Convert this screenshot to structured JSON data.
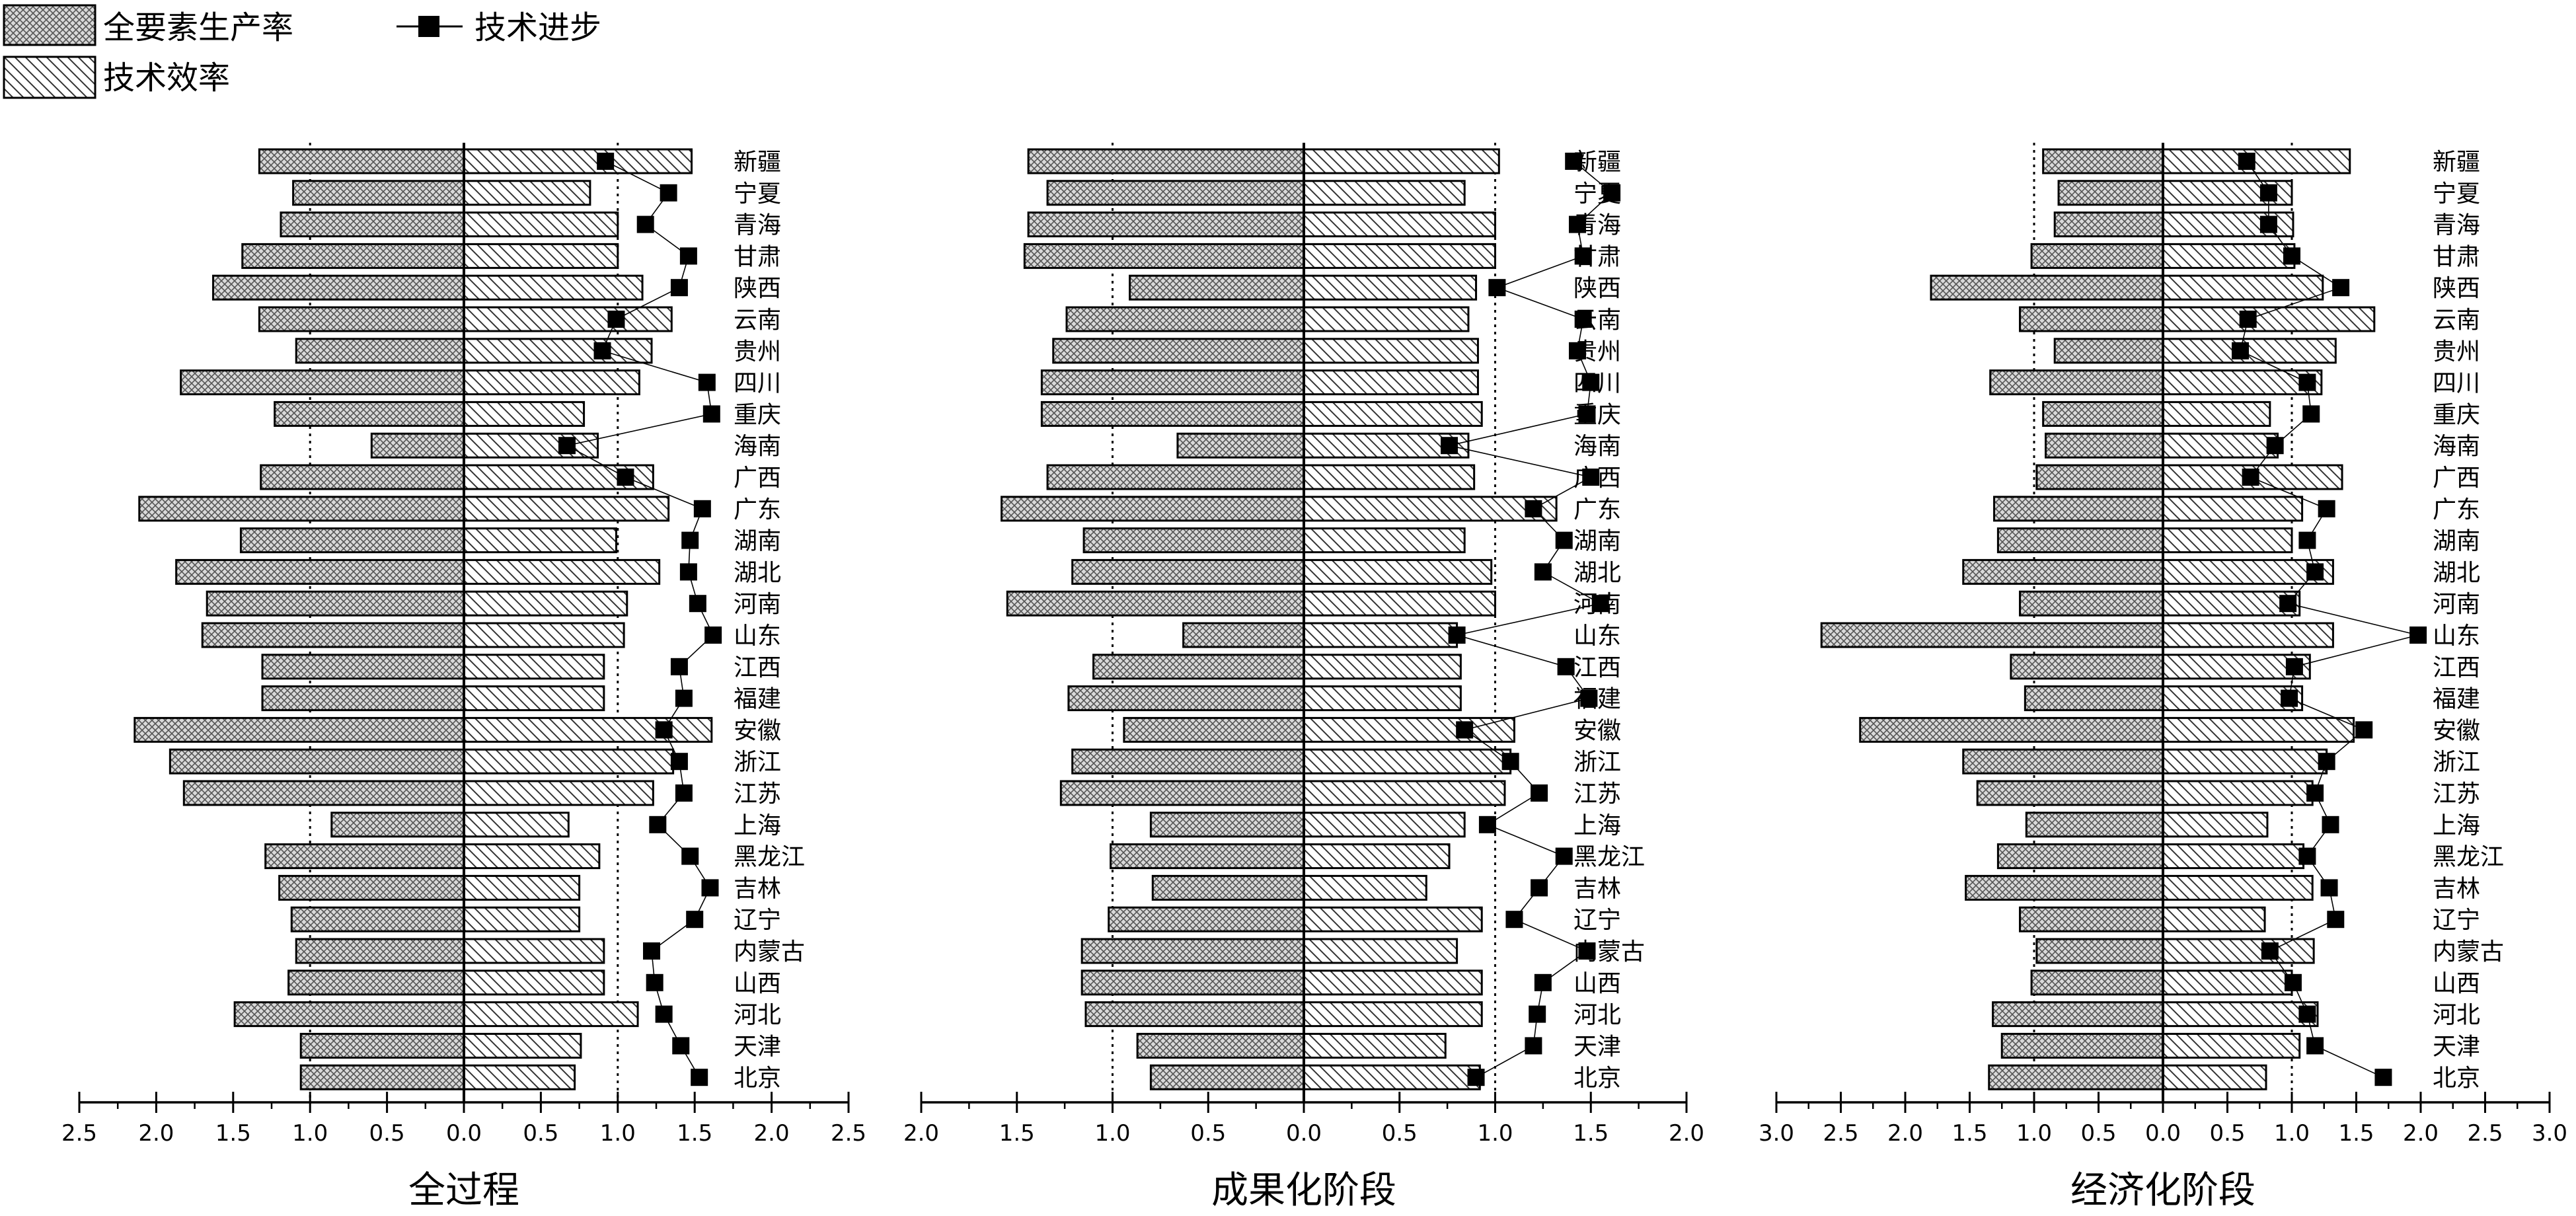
{
  "legend": {
    "tfp": "全要素生产率",
    "tech_progress": "技术进步",
    "tech_efficiency": "技术效率"
  },
  "colors": {
    "bar_stroke": "#000000",
    "bar_fill": "#ffffff",
    "marker": "#000000"
  },
  "chart_data": [
    {
      "type": "bar",
      "title": "全过程",
      "orientation": "horizontal, back-to-back: 全要素生产率 extends left, 技术效率 extends right, 技术进步 markers on right",
      "categories": [
        "新疆",
        "宁夏",
        "青海",
        "甘肃",
        "陕西",
        "云南",
        "贵州",
        "四川",
        "重庆",
        "海南",
        "广西",
        "广东",
        "湖南",
        "湖北",
        "河南",
        "山东",
        "江西",
        "福建",
        "安徽",
        "浙江",
        "江苏",
        "上海",
        "黑龙江",
        "吉林",
        "辽宁",
        "内蒙古",
        "山西",
        "河北",
        "天津",
        "北京"
      ],
      "tick_labels": [
        "2.5",
        "2.0",
        "1.5",
        "1.0",
        "0.5",
        "0.0",
        "0.5",
        "1.0",
        "1.5",
        "2.0",
        "2.5"
      ],
      "xlim": [
        -2.5,
        2.5
      ],
      "reference_lines": [
        -1.0,
        1.0
      ],
      "series": [
        {
          "name": "全要素生产率",
          "values": [
            1.33,
            1.11,
            1.19,
            1.44,
            1.63,
            1.33,
            1.09,
            1.84,
            1.23,
            0.6,
            1.32,
            2.11,
            1.45,
            1.87,
            1.67,
            1.7,
            1.31,
            1.31,
            2.14,
            1.91,
            1.82,
            0.86,
            1.29,
            1.2,
            1.12,
            1.09,
            1.14,
            1.49,
            1.06,
            1.06
          ]
        },
        {
          "name": "技术效率",
          "values": [
            1.48,
            0.82,
            1.0,
            1.0,
            1.16,
            1.35,
            1.22,
            1.14,
            0.78,
            0.87,
            1.23,
            1.33,
            0.99,
            1.27,
            1.06,
            1.04,
            0.91,
            0.91,
            1.61,
            1.36,
            1.23,
            0.68,
            0.88,
            0.75,
            0.75,
            0.91,
            0.91,
            1.13,
            0.76,
            0.72
          ]
        },
        {
          "name": "技术进步",
          "values": [
            0.92,
            1.33,
            1.18,
            1.46,
            1.4,
            0.99,
            0.9,
            1.58,
            1.61,
            0.67,
            1.05,
            1.55,
            1.47,
            1.46,
            1.52,
            1.62,
            1.4,
            1.43,
            1.3,
            1.4,
            1.43,
            1.26,
            1.47,
            1.6,
            1.5,
            1.22,
            1.24,
            1.3,
            1.41,
            1.53
          ]
        }
      ]
    },
    {
      "type": "bar",
      "title": "成果化阶段",
      "orientation": "horizontal, back-to-back",
      "categories": [
        "新疆",
        "宁夏",
        "青海",
        "甘肃",
        "陕西",
        "云南",
        "贵州",
        "四川",
        "重庆",
        "海南",
        "广西",
        "广东",
        "湖南",
        "湖北",
        "河南",
        "山东",
        "江西",
        "福建",
        "安徽",
        "浙江",
        "江苏",
        "上海",
        "黑龙江",
        "吉林",
        "辽宁",
        "内蒙古",
        "山西",
        "河北",
        "天津",
        "北京"
      ],
      "tick_labels": [
        "2.0",
        "1.5",
        "1.0",
        "0.5",
        "0.0",
        "0.5",
        "1.0",
        "1.5",
        "2.0"
      ],
      "xlim": [
        -2.0,
        2.0
      ],
      "reference_lines": [
        -1.0,
        1.0
      ],
      "series": [
        {
          "name": "全要素生产率",
          "values": [
            1.44,
            1.34,
            1.44,
            1.46,
            0.91,
            1.24,
            1.31,
            1.37,
            1.37,
            0.66,
            1.34,
            1.58,
            1.15,
            1.21,
            1.55,
            0.63,
            1.1,
            1.23,
            0.94,
            1.21,
            1.27,
            0.8,
            1.01,
            0.79,
            1.02,
            1.16,
            1.16,
            1.14,
            0.87,
            0.8
          ]
        },
        {
          "name": "技术效率",
          "values": [
            1.02,
            0.84,
            1.0,
            1.0,
            0.9,
            0.86,
            0.91,
            0.91,
            0.93,
            0.86,
            0.89,
            1.32,
            0.84,
            0.98,
            1.0,
            0.8,
            0.82,
            0.82,
            1.1,
            1.08,
            1.05,
            0.84,
            0.76,
            0.64,
            0.93,
            0.8,
            0.93,
            0.93,
            0.74,
            0.92
          ]
        },
        {
          "name": "技术进步",
          "values": [
            1.41,
            1.61,
            1.43,
            1.46,
            1.01,
            1.46,
            1.43,
            1.5,
            1.48,
            0.76,
            1.5,
            1.2,
            1.36,
            1.25,
            1.55,
            0.8,
            1.37,
            1.49,
            0.84,
            1.08,
            1.23,
            0.96,
            1.36,
            1.23,
            1.1,
            1.48,
            1.25,
            1.22,
            1.2,
            0.9
          ]
        }
      ]
    },
    {
      "type": "bar",
      "title": "经济化阶段",
      "orientation": "horizontal, back-to-back",
      "categories": [
        "新疆",
        "宁夏",
        "青海",
        "甘肃",
        "陕西",
        "云南",
        "贵州",
        "四川",
        "重庆",
        "海南",
        "广西",
        "广东",
        "湖南",
        "湖北",
        "河南",
        "山东",
        "江西",
        "福建",
        "安徽",
        "浙江",
        "江苏",
        "上海",
        "黑龙江",
        "吉林",
        "辽宁",
        "内蒙古",
        "山西",
        "河北",
        "天津",
        "北京"
      ],
      "tick_labels": [
        "3.0",
        "2.5",
        "2.0",
        "1.5",
        "1.0",
        "0.5",
        "0.0",
        "0.5",
        "1.0",
        "1.5",
        "2.0",
        "2.5",
        "3.0"
      ],
      "xlim": [
        -3.0,
        3.0
      ],
      "reference_lines": [
        -1.0,
        1.0
      ],
      "series": [
        {
          "name": "全要素生产率",
          "values": [
            0.93,
            0.81,
            0.84,
            1.02,
            1.8,
            1.11,
            0.84,
            1.34,
            0.93,
            0.91,
            0.98,
            1.31,
            1.28,
            1.55,
            1.11,
            2.65,
            1.18,
            1.07,
            2.35,
            1.55,
            1.44,
            1.06,
            1.28,
            1.53,
            1.11,
            0.98,
            1.02,
            1.32,
            1.25,
            1.35
          ]
        },
        {
          "name": "技术效率",
          "values": [
            1.45,
            1.0,
            1.01,
            1.02,
            1.24,
            1.64,
            1.34,
            1.23,
            0.83,
            0.89,
            1.39,
            1.08,
            1.0,
            1.32,
            1.06,
            1.32,
            1.14,
            1.08,
            1.48,
            1.27,
            1.16,
            0.81,
            1.09,
            1.16,
            0.79,
            1.17,
            1.0,
            1.2,
            1.06,
            0.8
          ]
        },
        {
          "name": "技术进步",
          "values": [
            0.65,
            0.82,
            0.82,
            1.0,
            1.38,
            0.66,
            0.6,
            1.12,
            1.15,
            0.87,
            0.68,
            1.27,
            1.12,
            1.18,
            0.97,
            1.98,
            1.02,
            0.98,
            1.56,
            1.27,
            1.18,
            1.3,
            1.12,
            1.29,
            1.34,
            0.83,
            1.01,
            1.12,
            1.18,
            1.71
          ]
        }
      ]
    }
  ]
}
